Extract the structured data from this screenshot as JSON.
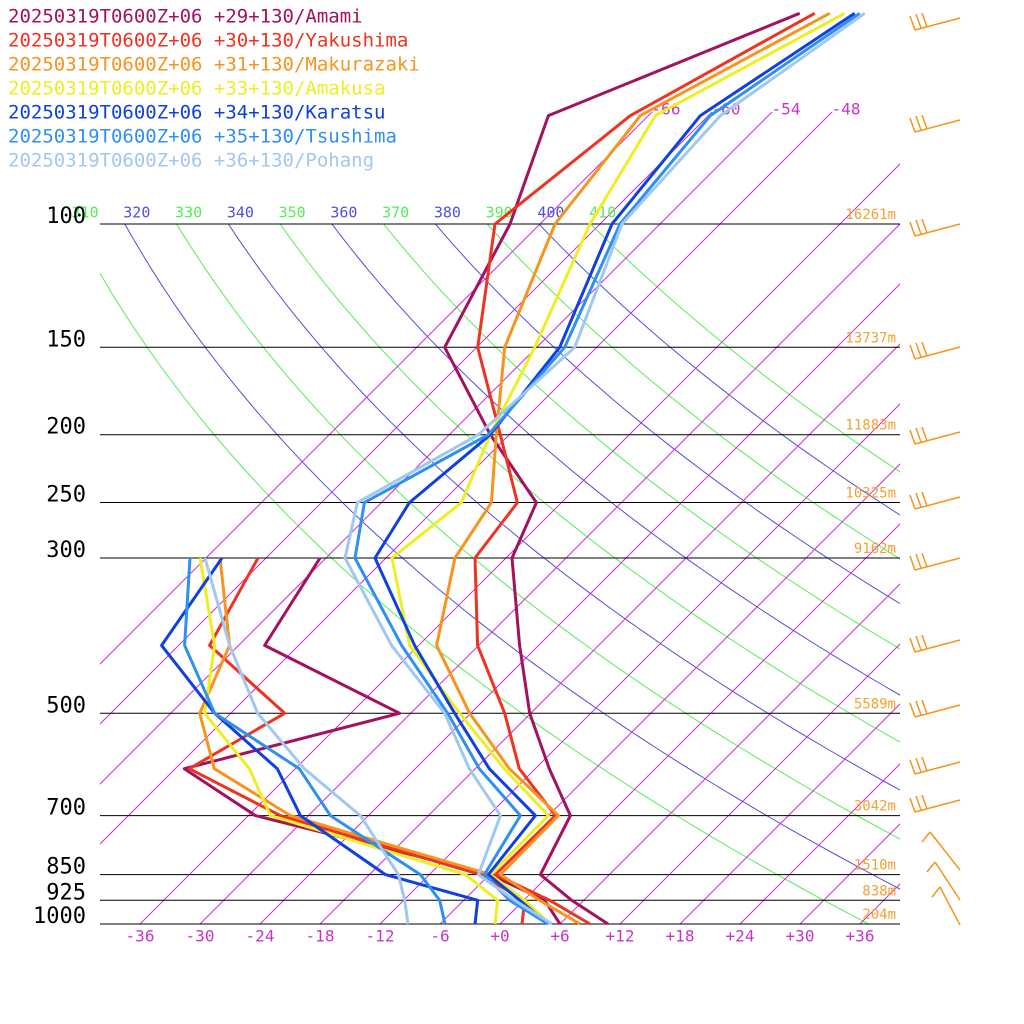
{
  "chart_data": {
    "type": "skewt",
    "pressure_levels": [
      1000,
      925,
      850,
      700,
      600,
      500,
      400,
      300,
      250,
      200,
      150,
      100,
      70,
      50
    ],
    "series": [
      {
        "name": "20250319T0600Z+06 +29+130/Amami",
        "color": "#a3125e",
        "temperature": [
          10.8,
          4.8,
          -0.9,
          -3.8,
          -10.6,
          -18.1,
          -25.9,
          -35.4,
          -38.5,
          -49.9,
          -63.2,
          -69,
          -76,
          -61.1
        ],
        "dewpoint": [
          6,
          2.1,
          -5.9,
          -35.3,
          -47.1,
          -31.1,
          -51.4,
          -54.6,
          null,
          null,
          null,
          null,
          null,
          null
        ]
      },
      {
        "name": "20250319T0600Z+06 +30+130/Yakushima",
        "color": "#ee3322",
        "temperature": [
          9.0,
          2.6,
          -5.4,
          -5.3,
          -13.6,
          -20.6,
          -30.1,
          -39.1,
          -40.4,
          -48.9,
          -59.9,
          -70.5,
          -67.8,
          -59.6
        ],
        "dewpoint": [
          2.2,
          0.1,
          -6.9,
          -32.8,
          -46.6,
          -42.6,
          -56.9,
          -60.8,
          null,
          null,
          null,
          null,
          null,
          null
        ]
      },
      {
        "name": "20250319T0600Z+06 +31+130/Makurazaki",
        "color": "#f7941d",
        "temperature": [
          8.0,
          1.6,
          -4.9,
          -5.0,
          -14.6,
          -24.1,
          -34.2,
          -41.1,
          -43.0,
          -49.3,
          -57.2,
          -64.5,
          -66.8,
          -58.1
        ],
        "dewpoint": [
          4.8,
          -0.4,
          -5.9,
          -31.8,
          -44.1,
          -51.1,
          -54.9,
          -64.6,
          null,
          null,
          null,
          null,
          null,
          null
        ]
      },
      {
        "name": "20250319T0600Z+06 +33+130/Amakusa",
        "color": "#eeee22",
        "temperature": [
          5.0,
          0.1,
          -5.9,
          -6.0,
          -15.1,
          -25.1,
          -36.9,
          -47.4,
          -46.0,
          -49.9,
          -54.2,
          -61.0,
          -65.3,
          -56.6
        ],
        "dewpoint": [
          -0.5,
          -2.6,
          -8.4,
          -33.8,
          -40.6,
          -50.6,
          -56.4,
          -66.6,
          null,
          null,
          null,
          null,
          null,
          null
        ]
      },
      {
        "name": "20250319T0600Z+06 +34+130/Karatsu",
        "color": "#1040e0",
        "temperature": [
          4.8,
          -0.4,
          -6.1,
          -7.3,
          -16.6,
          -25.6,
          -36.4,
          -49.1,
          -51.2,
          -49.9,
          -51.7,
          -58.8,
          -60.8,
          -55.6
        ],
        "dewpoint": [
          -2.5,
          -4.6,
          -16.4,
          -30.8,
          -37.8,
          -49.6,
          -61.7,
          -64.4,
          null,
          null,
          null,
          null,
          null,
          null
        ]
      },
      {
        "name": "20250319T0600Z+06 +35+130/Tsushima",
        "color": "#3090f0",
        "temperature": [
          4.8,
          -1.4,
          -6.5,
          -8.8,
          -17.6,
          -26.3,
          -37.7,
          -51.1,
          -55.7,
          -50.1,
          -51.2,
          -58.0,
          -59.8,
          -55.1
        ],
        "dewpoint": [
          -5.5,
          -8.4,
          -12.9,
          -27.8,
          -35.6,
          -49.6,
          -59.4,
          -67.6,
          null,
          null,
          null,
          null,
          null,
          null
        ]
      },
      {
        "name": "20250319T0600Z+06 +36+130/Pohang",
        "color": "#a0c8f0",
        "temperature": [
          5.2,
          -0.9,
          -7.1,
          -10.8,
          -18.6,
          -26.6,
          -38.7,
          -52.1,
          -56.4,
          -51.1,
          -50.2,
          -57.8,
          -58.8,
          -54.6
        ],
        "dewpoint": [
          -9.2,
          -11.9,
          -15.1,
          -24.8,
          -35.1,
          -45.3,
          -54.9,
          -66.1,
          null,
          null,
          null,
          null,
          null,
          null
        ]
      }
    ],
    "xlim": [
      -40,
      40
    ],
    "xticks": [
      -36,
      -30,
      -24,
      -18,
      -12,
      -6,
      {
        "value": 0,
        "label": "+0"
      },
      {
        "value": 6,
        "label": "+6"
      },
      {
        "value": 12,
        "label": "+12"
      },
      {
        "value": 18,
        "label": "+18"
      },
      {
        "value": 24,
        "label": "+24"
      },
      {
        "value": 30,
        "label": "+30"
      },
      {
        "value": 36,
        "label": "+36"
      }
    ],
    "ylim": [
      1000,
      100
    ],
    "log_y": true,
    "yticks": [
      100,
      150,
      200,
      250,
      300,
      500,
      700,
      850,
      925,
      1000
    ],
    "heights": [
      "16261m",
      "13737m",
      "11883m",
      "10325m",
      "9162m",
      "5589m",
      "3042m",
      "1510m",
      "838m",
      "204m"
    ],
    "isotherm_labels": [
      -66,
      -60,
      -54,
      -48
    ],
    "theta_labels": [
      310,
      320,
      330,
      340,
      350,
      360,
      370,
      380,
      390,
      400,
      410
    ],
    "adiabat_colors": [
      "#55ee55",
      "#5050e0"
    ],
    "isotherm_color": "#cc33cc",
    "height_color": "#f5a030"
  }
}
